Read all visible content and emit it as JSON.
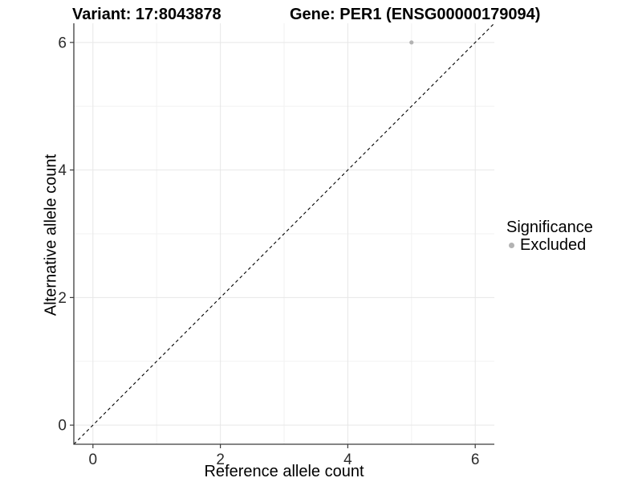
{
  "titles": {
    "variant": "Variant: 17:8043878",
    "gene": "Gene: PER1 (ENSG00000179094)"
  },
  "axes": {
    "x_label": "Reference allele count",
    "y_label": "Alternative allele count"
  },
  "legend": {
    "title": "Significance",
    "position": "right",
    "items": [
      {
        "label": "Excluded",
        "color": "#b3b3b3"
      }
    ]
  },
  "colors": {
    "background": "#ffffff",
    "axis_line": "#3c3c3c",
    "tick_label": "#2b2b2b",
    "grid_major": "#e7e7e7",
    "grid_minor": "#f2f2f2",
    "reference_line": "#000000",
    "point_excluded": "#b3b3b3"
  },
  "chart_data": {
    "type": "scatter",
    "title": "Variant: 17:8043878   Gene: PER1 (ENSG00000179094)",
    "xlabel": "Reference allele count",
    "ylabel": "Alternative allele count",
    "xlim": [
      -0.3,
      6.3
    ],
    "ylim": [
      -0.3,
      6.3
    ],
    "x_ticks": [
      0,
      2,
      4,
      6
    ],
    "y_ticks": [
      0,
      2,
      4,
      6
    ],
    "x_minor_ticks": [
      1,
      3,
      5
    ],
    "y_minor_ticks": [
      1,
      3,
      5
    ],
    "grid": true,
    "legend_position": "right",
    "series": [
      {
        "name": "Excluded",
        "color": "#b3b3b3",
        "points": [
          {
            "x": 5,
            "y": 6
          }
        ]
      }
    ],
    "reference_line": {
      "type": "identity",
      "slope": 1,
      "intercept": 0,
      "style": "dashed",
      "color": "#000000"
    }
  }
}
